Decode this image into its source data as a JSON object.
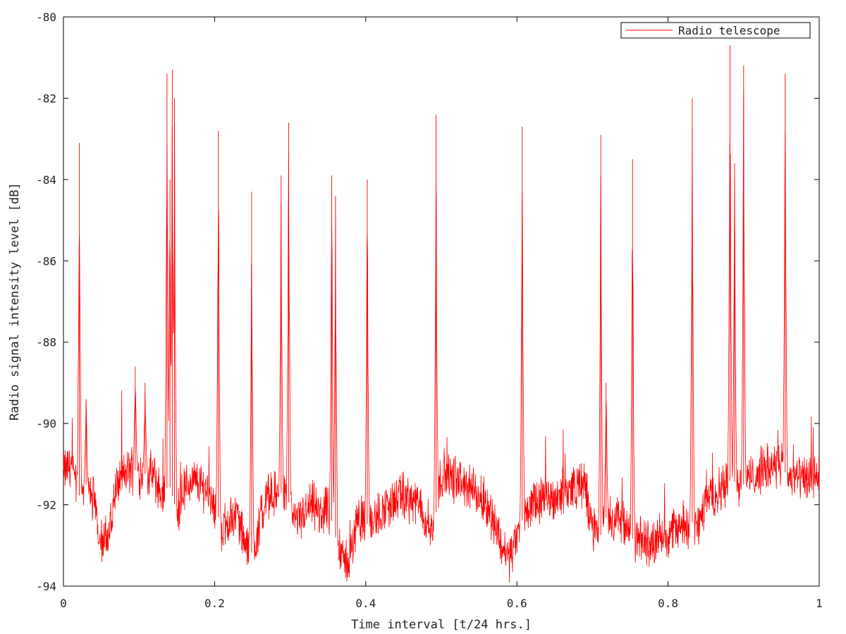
{
  "chart_data": {
    "type": "line",
    "title": "",
    "xlabel": "Time interval [t/24 hrs.]",
    "ylabel": "Radio signal intensity level [dB]",
    "xlim": [
      0,
      1
    ],
    "ylim": [
      -94,
      -80
    ],
    "xticks": [
      0,
      0.2,
      0.4,
      0.6,
      0.8,
      1
    ],
    "xtick_labels": [
      "0",
      "0.2",
      "0.4",
      "0.6",
      "0.8",
      "1"
    ],
    "yticks": [
      -94,
      -92,
      -90,
      -88,
      -86,
      -84,
      -82,
      -80
    ],
    "ytick_labels": [
      "-94",
      "-92",
      "-90",
      "-88",
      "-86",
      "-84",
      "-82",
      "-80"
    ],
    "grid": false,
    "legend": {
      "position": "top-right",
      "entries": [
        "Radio telescope"
      ]
    },
    "series": [
      {
        "name": "Radio telescope",
        "color": "#ff0000",
        "baseline": [
          [
            0.0,
            -91.2
          ],
          [
            0.01,
            -91.0
          ],
          [
            0.02,
            -91.8
          ],
          [
            0.03,
            -91.5
          ],
          [
            0.04,
            -91.9
          ],
          [
            0.05,
            -92.9
          ],
          [
            0.06,
            -92.8
          ],
          [
            0.07,
            -91.5
          ],
          [
            0.08,
            -91.3
          ],
          [
            0.09,
            -91.1
          ],
          [
            0.1,
            -91.2
          ],
          [
            0.12,
            -91.3
          ],
          [
            0.13,
            -91.8
          ],
          [
            0.14,
            -91.5
          ],
          [
            0.15,
            -92.2
          ],
          [
            0.16,
            -91.6
          ],
          [
            0.17,
            -91.4
          ],
          [
            0.19,
            -91.6
          ],
          [
            0.2,
            -92.0
          ],
          [
            0.21,
            -92.6
          ],
          [
            0.22,
            -92.4
          ],
          [
            0.23,
            -92.2
          ],
          [
            0.24,
            -93.0
          ],
          [
            0.25,
            -93.2
          ],
          [
            0.26,
            -92.4
          ],
          [
            0.27,
            -91.8
          ],
          [
            0.29,
            -91.7
          ],
          [
            0.3,
            -92.0
          ],
          [
            0.31,
            -92.4
          ],
          [
            0.33,
            -92.0
          ],
          [
            0.34,
            -92.3
          ],
          [
            0.35,
            -92.0
          ],
          [
            0.36,
            -92.8
          ],
          [
            0.37,
            -93.4
          ],
          [
            0.38,
            -93.3
          ],
          [
            0.39,
            -92.2
          ],
          [
            0.4,
            -92.5
          ],
          [
            0.41,
            -92.4
          ],
          [
            0.43,
            -92.0
          ],
          [
            0.45,
            -91.8
          ],
          [
            0.47,
            -92.0
          ],
          [
            0.48,
            -92.4
          ],
          [
            0.49,
            -92.6
          ],
          [
            0.5,
            -91.2
          ],
          [
            0.52,
            -91.4
          ],
          [
            0.54,
            -91.6
          ],
          [
            0.56,
            -92.0
          ],
          [
            0.57,
            -92.4
          ],
          [
            0.58,
            -93.0
          ],
          [
            0.59,
            -93.3
          ],
          [
            0.6,
            -92.8
          ],
          [
            0.61,
            -92.2
          ],
          [
            0.63,
            -91.9
          ],
          [
            0.65,
            -91.8
          ],
          [
            0.67,
            -91.6
          ],
          [
            0.69,
            -91.5
          ],
          [
            0.7,
            -92.6
          ],
          [
            0.71,
            -92.8
          ],
          [
            0.72,
            -92.2
          ],
          [
            0.74,
            -92.4
          ],
          [
            0.75,
            -92.8
          ],
          [
            0.76,
            -92.9
          ],
          [
            0.78,
            -92.9
          ],
          [
            0.8,
            -92.7
          ],
          [
            0.82,
            -92.5
          ],
          [
            0.83,
            -92.4
          ],
          [
            0.84,
            -92.6
          ],
          [
            0.85,
            -91.8
          ],
          [
            0.87,
            -91.6
          ],
          [
            0.88,
            -91.4
          ],
          [
            0.9,
            -91.5
          ],
          [
            0.92,
            -91.2
          ],
          [
            0.94,
            -91.0
          ],
          [
            0.95,
            -91.1
          ],
          [
            0.96,
            -91.3
          ],
          [
            0.98,
            -91.4
          ],
          [
            1.0,
            -91.3
          ]
        ],
        "spikes": [
          [
            0.021,
            -83.1
          ],
          [
            0.03,
            -89.4
          ],
          [
            0.095,
            -88.6
          ],
          [
            0.108,
            -89.0
          ],
          [
            0.137,
            -81.4
          ],
          [
            0.141,
            -84.0
          ],
          [
            0.144,
            -81.3
          ],
          [
            0.147,
            -82.0
          ],
          [
            0.205,
            -82.8
          ],
          [
            0.249,
            -84.3
          ],
          [
            0.288,
            -83.9
          ],
          [
            0.298,
            -82.6
          ],
          [
            0.355,
            -83.9
          ],
          [
            0.36,
            -84.4
          ],
          [
            0.402,
            -84.0
          ],
          [
            0.493,
            -82.4
          ],
          [
            0.607,
            -82.7
          ],
          [
            0.711,
            -82.9
          ],
          [
            0.718,
            -89.0
          ],
          [
            0.753,
            -83.5
          ],
          [
            0.832,
            -82.0
          ],
          [
            0.882,
            -80.7
          ],
          [
            0.888,
            -83.6
          ],
          [
            0.9,
            -81.2
          ],
          [
            0.955,
            -81.4
          ]
        ]
      }
    ]
  }
}
